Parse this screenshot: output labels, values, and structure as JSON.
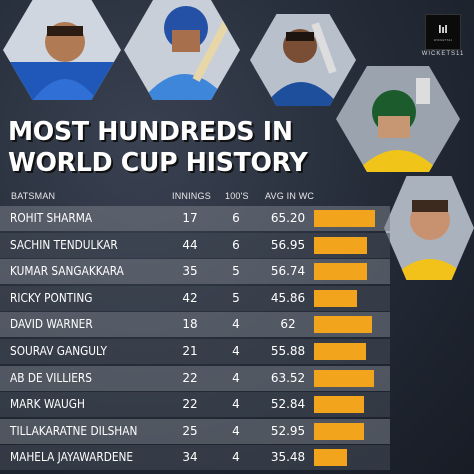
{
  "brand": {
    "name": "WICKETS11",
    "logo_sub": "WICKETS11"
  },
  "title": {
    "line1": "MOST HUNDREDS IN",
    "line2": "WORLD CUP HISTORY"
  },
  "colors": {
    "bar": "#f2a41c",
    "background": "#1c2330",
    "row_light": "#6e737d",
    "row_dark": "#3f4552"
  },
  "chart_data": {
    "type": "table",
    "title": "MOST HUNDREDS IN WORLD CUP HISTORY",
    "columns": [
      "BATSMAN",
      "INNINGS",
      "100'S",
      "AVG IN WC"
    ],
    "rows": [
      {
        "batsman": "ROHIT SHARMA",
        "innings": "17",
        "hundreds": "6",
        "avg": "65.20",
        "avg_value": 65.2
      },
      {
        "batsman": "SACHIN TENDULKAR",
        "innings": "44",
        "hundreds": "6",
        "avg": "56.95",
        "avg_value": 56.95
      },
      {
        "batsman": "KUMAR SANGAKKARA",
        "innings": "35",
        "hundreds": "5",
        "avg": "56.74",
        "avg_value": 56.74
      },
      {
        "batsman": "RICKY PONTING",
        "innings": "42",
        "hundreds": "5",
        "avg": "45.86",
        "avg_value": 45.86
      },
      {
        "batsman": "DAVID WARNER",
        "innings": "18",
        "hundreds": "4",
        "avg": "62",
        "avg_value": 62
      },
      {
        "batsman": "SOURAV GANGULY",
        "innings": "21",
        "hundreds": "4",
        "avg": "55.88",
        "avg_value": 55.88
      },
      {
        "batsman": "AB DE VILLIERS",
        "innings": "22",
        "hundreds": "4",
        "avg": "63.52",
        "avg_value": 63.52
      },
      {
        "batsman": "MARK WAUGH",
        "innings": "22",
        "hundreds": "4",
        "avg": "52.84",
        "avg_value": 52.84
      },
      {
        "batsman": "TILLAKARATNE DILSHAN",
        "innings": "25",
        "hundreds": "4",
        "avg": "52.95",
        "avg_value": 52.95
      },
      {
        "batsman": "MAHELA JAYAWARDENE",
        "innings": "34",
        "hundreds": "4",
        "avg": "35.48",
        "avg_value": 35.48
      }
    ],
    "bar_scale_max": 66
  }
}
